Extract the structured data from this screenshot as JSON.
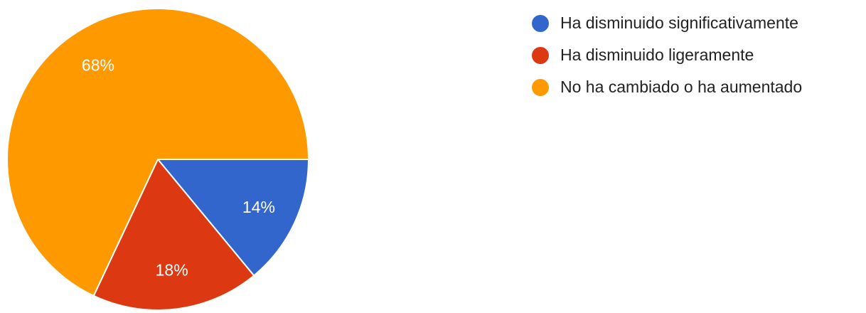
{
  "chart_data": {
    "type": "pie",
    "title": "",
    "categories": [
      "Ha disminuido significativamente",
      "Ha disminuido ligeramente",
      "No ha cambiado o ha aumentado"
    ],
    "values": [
      14,
      18,
      68
    ],
    "value_labels": [
      "14%",
      "18%",
      "68%"
    ],
    "colors": [
      "#3366cc",
      "#dc3912",
      "#ff9900"
    ],
    "start": "3 o'clock, clockwise",
    "legend_position": "right"
  }
}
